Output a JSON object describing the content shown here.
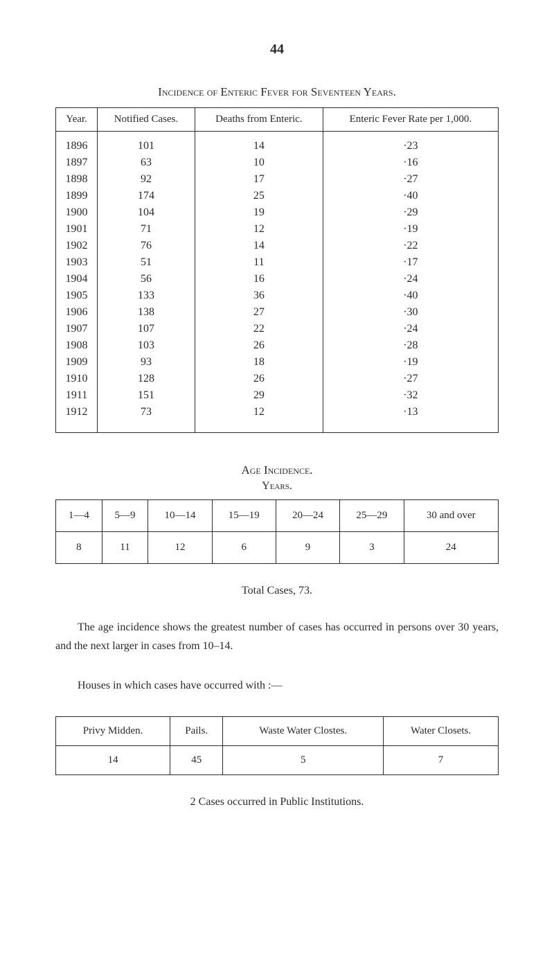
{
  "page_number": "44",
  "table1": {
    "title": "Incidence of Enteric Fever for Seventeen Years.",
    "columns": [
      "Year.",
      "Notified Cases.",
      "Deaths from Enteric.",
      "Enteric Fever Rate per 1,000."
    ],
    "rows": [
      [
        "1896",
        "101",
        "14",
        "·23"
      ],
      [
        "1897",
        "63",
        "10",
        "·16"
      ],
      [
        "1898",
        "92",
        "17",
        "·27"
      ],
      [
        "1899",
        "174",
        "25",
        "·40"
      ],
      [
        "1900",
        "104",
        "19",
        "·29"
      ],
      [
        "1901",
        "71",
        "12",
        "·19"
      ],
      [
        "1902",
        "76",
        "14",
        "·22"
      ],
      [
        "1903",
        "51",
        "11",
        "·17"
      ],
      [
        "1904",
        "56",
        "16",
        "·24"
      ],
      [
        "1905",
        "133",
        "36",
        "·40"
      ],
      [
        "1906",
        "138",
        "27",
        "·30"
      ],
      [
        "1907",
        "107",
        "22",
        "·24"
      ],
      [
        "1908",
        "103",
        "26",
        "·28"
      ],
      [
        "1909",
        "93",
        "18",
        "·19"
      ],
      [
        "1910",
        "128",
        "26",
        "·27"
      ],
      [
        "1911",
        "151",
        "29",
        "·32"
      ],
      [
        "1912",
        "73",
        "12",
        "·13"
      ]
    ]
  },
  "table2": {
    "title": "Age Incidence.",
    "subtitle": "Years.",
    "columns": [
      "1—4",
      "5—9",
      "10—14",
      "15—19",
      "20—24",
      "25—29",
      "30 and over"
    ],
    "row": [
      "8",
      "11",
      "12",
      "6",
      "9",
      "3",
      "24"
    ],
    "caption": "Total Cases, 73."
  },
  "paragraph1": "The age incidence shows the greatest number of cases has occurred in persons over 30 years, and the next larger in cases from 10–14.",
  "paragraph2": "Houses in which cases have occurred with :—",
  "table3": {
    "columns": [
      "Privy Midden.",
      "Pails.",
      "Waste Water Clostes.",
      "Water Closets."
    ],
    "row": [
      "14",
      "45",
      "5",
      "7"
    ]
  },
  "footnote": "2 Cases occurred in Public Institutions."
}
